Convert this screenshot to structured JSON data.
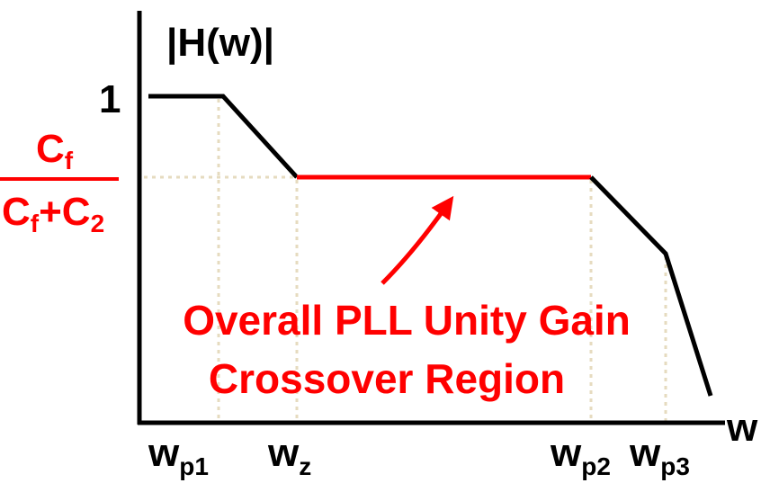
{
  "y_axis_label": "|H(w)|",
  "x_axis_label": "w",
  "y_labels": {
    "one": "1",
    "fraction": {
      "numerator": {
        "base": "C",
        "sub": "f"
      },
      "denominator": [
        {
          "base": "C",
          "sub": "f"
        },
        {
          "base": "+C",
          "sub": "2"
        }
      ]
    }
  },
  "x_labels": [
    {
      "base": "w",
      "sub": "p1"
    },
    {
      "base": "w",
      "sub": "z"
    },
    {
      "base": "w",
      "sub": "p2"
    },
    {
      "base": "w",
      "sub": "p3"
    }
  ],
  "annotation": [
    "Overall PLL Unity Gain",
    "Crossover Region"
  ]
}
